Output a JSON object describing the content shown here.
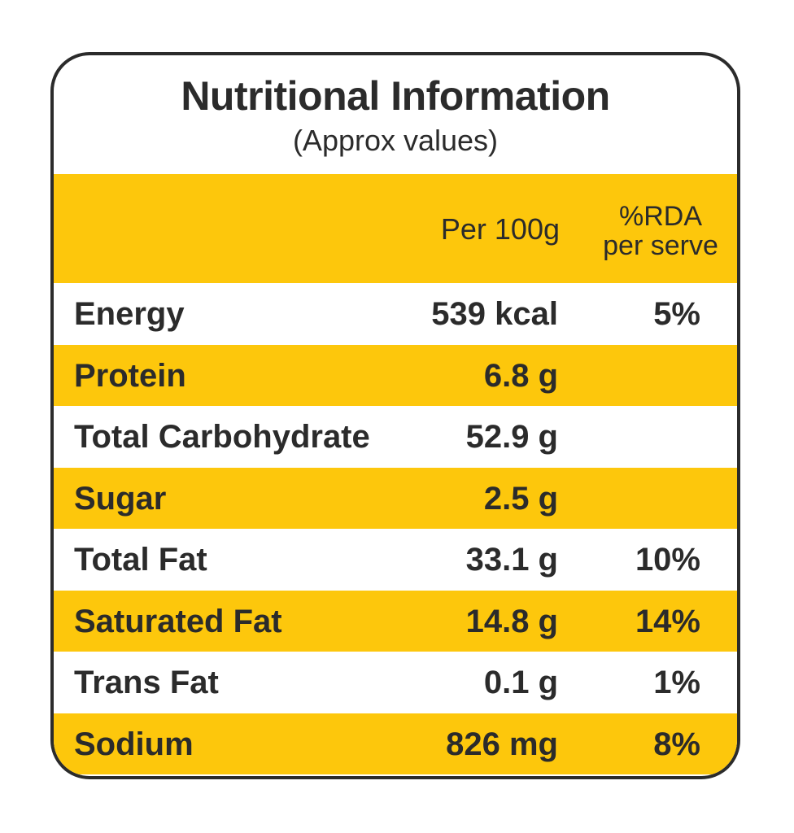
{
  "title": "Nutritional Information",
  "subtitle": "(Approx values)",
  "header": {
    "per_100g": "Per 100g",
    "rda_line1": "%RDA",
    "rda_line2": "per serve"
  },
  "rows": [
    {
      "label": "Energy",
      "per_100g": "539 kcal",
      "rda": "5%"
    },
    {
      "label": "Protein",
      "per_100g": "6.8 g",
      "rda": ""
    },
    {
      "label": "Total Carbohydrate",
      "per_100g": "52.9 g",
      "rda": ""
    },
    {
      "label": "Sugar",
      "per_100g": "2.5 g",
      "rda": ""
    },
    {
      "label": "Total Fat",
      "per_100g": "33.1 g",
      "rda": "10%"
    },
    {
      "label": "Saturated Fat",
      "per_100g": "14.8 g",
      "rda": "14%"
    },
    {
      "label": "Trans Fat",
      "per_100g": "0.1 g",
      "rda": "1%"
    },
    {
      "label": "Sodium",
      "per_100g": "826 mg",
      "rda": "8%"
    }
  ],
  "colors": {
    "accent": "#fdc70c",
    "text": "#2b2b2b",
    "border": "#2b2b2b",
    "background": "#ffffff"
  }
}
